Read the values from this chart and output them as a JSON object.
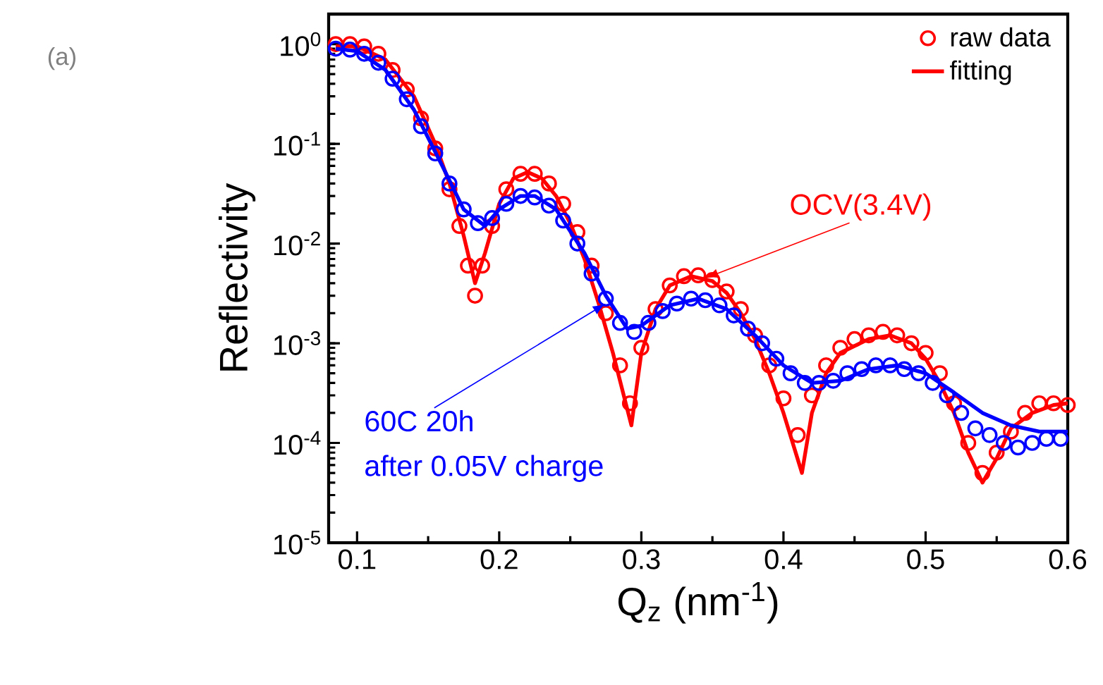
{
  "chart_data": {
    "type": "scatter",
    "xlabel": "Q$_{z}$ (nm$^{-1}$)",
    "ylabel": "Reflectivity",
    "log": "y",
    "legend": "top right",
    "xlim": [
      0.08,
      0.6
    ],
    "xticks": [
      0.1,
      0.2,
      0.3,
      0.4,
      0.5,
      0.6
    ],
    "ylim": [
      1e-05,
      2
    ],
    "yticks": [
      {
        "value": 1e-05,
        "label": "10$^{-5}$"
      },
      {
        "value": 0.0001,
        "label": "10$^{-4}$"
      },
      {
        "value": 0.001,
        "label": "10$^{-3}$"
      },
      {
        "value": 0.01,
        "label": "10$^{-2}$"
      },
      {
        "value": 0.1,
        "label": "10$^{-1}$"
      },
      {
        "value": 1,
        "label": "10$^{0}$"
      }
    ],
    "annotations": [
      "(a)",
      {
        "text": "OCV(3.4V)",
        "x": 0.345,
        "y": 0.0045
      },
      {
        "text": "60C 20h",
        "x": 0.275,
        "y": 0.0025
      },
      "after 0.05V charge"
    ],
    "series": [
      {
        "type": "scatter",
        "name": "raw data",
        "color": "#ff0000",
        "marker": "circle",
        "x": [
          0.085,
          0.095,
          0.105,
          0.115,
          0.125,
          0.135,
          0.145,
          0.155,
          0.165,
          0.172,
          0.178,
          0.183,
          0.188,
          0.195,
          0.205,
          0.215,
          0.225,
          0.235,
          0.245,
          0.255,
          0.265,
          0.275,
          0.285,
          0.292,
          0.3,
          0.31,
          0.32,
          0.33,
          0.34,
          0.35,
          0.36,
          0.37,
          0.38,
          0.39,
          0.4,
          0.41,
          0.42,
          0.43,
          0.44,
          0.45,
          0.46,
          0.47,
          0.48,
          0.49,
          0.5,
          0.51,
          0.52,
          0.53,
          0.54,
          0.55,
          0.56,
          0.57,
          0.58,
          0.59,
          0.6
        ],
        "values": [
          1.0,
          1.0,
          0.95,
          0.8,
          0.55,
          0.35,
          0.18,
          0.09,
          0.035,
          0.015,
          0.006,
          0.003,
          0.006,
          0.015,
          0.035,
          0.05,
          0.05,
          0.04,
          0.025,
          0.013,
          0.006,
          0.002,
          0.0006,
          0.00025,
          0.0009,
          0.0022,
          0.0038,
          0.0047,
          0.0048,
          0.0043,
          0.0033,
          0.0022,
          0.0012,
          0.0006,
          0.00028,
          0.00012,
          0.0003,
          0.0006,
          0.0009,
          0.0011,
          0.0012,
          0.0013,
          0.0012,
          0.001,
          0.0008,
          0.0005,
          0.00025,
          0.0001,
          5e-05,
          8e-05,
          0.00013,
          0.0002,
          0.00025,
          0.00025,
          0.00024
        ]
      },
      {
        "type": "line",
        "name": "fitting",
        "color": "#ff0000",
        "line_style": "solid",
        "marker": "none",
        "x": [
          0.085,
          0.1,
          0.12,
          0.14,
          0.155,
          0.165,
          0.175,
          0.183,
          0.19,
          0.2,
          0.21,
          0.22,
          0.23,
          0.24,
          0.25,
          0.26,
          0.27,
          0.28,
          0.293,
          0.3,
          0.31,
          0.32,
          0.335,
          0.35,
          0.36,
          0.37,
          0.38,
          0.39,
          0.4,
          0.413,
          0.42,
          0.43,
          0.44,
          0.46,
          0.475,
          0.49,
          0.5,
          0.51,
          0.52,
          0.53,
          0.54,
          0.55,
          0.56,
          0.575,
          0.59,
          0.6
        ],
        "values": [
          0.95,
          0.95,
          0.7,
          0.3,
          0.1,
          0.04,
          0.012,
          0.004,
          0.008,
          0.025,
          0.045,
          0.052,
          0.045,
          0.03,
          0.016,
          0.007,
          0.0025,
          0.0008,
          0.00015,
          0.0008,
          0.0022,
          0.0038,
          0.0047,
          0.0042,
          0.0032,
          0.002,
          0.0011,
          0.0005,
          0.0002,
          5e-05,
          0.0002,
          0.0005,
          0.0008,
          0.0011,
          0.0012,
          0.001,
          0.0007,
          0.0004,
          0.0002,
          8e-05,
          4e-05,
          7e-05,
          0.00014,
          0.0002,
          0.00024,
          0.00025
        ]
      },
      {
        "type": "scatter",
        "color": "#0000ff",
        "marker": "circle",
        "x": [
          0.085,
          0.095,
          0.105,
          0.115,
          0.125,
          0.135,
          0.145,
          0.155,
          0.165,
          0.175,
          0.185,
          0.195,
          0.205,
          0.215,
          0.225,
          0.235,
          0.245,
          0.255,
          0.265,
          0.275,
          0.285,
          0.295,
          0.305,
          0.315,
          0.325,
          0.335,
          0.345,
          0.355,
          0.365,
          0.375,
          0.385,
          0.395,
          0.405,
          0.415,
          0.425,
          0.435,
          0.445,
          0.455,
          0.465,
          0.475,
          0.485,
          0.495,
          0.505,
          0.515,
          0.525,
          0.535,
          0.545,
          0.555,
          0.565,
          0.575,
          0.585,
          0.595
        ],
        "values": [
          0.9,
          0.88,
          0.8,
          0.65,
          0.45,
          0.28,
          0.15,
          0.08,
          0.04,
          0.022,
          0.016,
          0.018,
          0.025,
          0.03,
          0.029,
          0.024,
          0.017,
          0.01,
          0.005,
          0.0028,
          0.0016,
          0.0013,
          0.0016,
          0.0021,
          0.0025,
          0.0028,
          0.0027,
          0.0024,
          0.0019,
          0.0014,
          0.001,
          0.0007,
          0.0005,
          0.0004,
          0.0004,
          0.00042,
          0.0005,
          0.00055,
          0.0006,
          0.0006,
          0.00055,
          0.0005,
          0.0004,
          0.0003,
          0.0002,
          0.00014,
          0.00012,
          0.0001,
          9e-05,
          0.0001,
          0.00011,
          0.00011
        ]
      },
      {
        "type": "line",
        "color": "#0000ff",
        "line_style": "solid",
        "marker": "none",
        "x": [
          0.085,
          0.1,
          0.12,
          0.14,
          0.16,
          0.175,
          0.19,
          0.2,
          0.215,
          0.225,
          0.24,
          0.26,
          0.275,
          0.29,
          0.3,
          0.32,
          0.34,
          0.36,
          0.38,
          0.4,
          0.42,
          0.44,
          0.46,
          0.48,
          0.5,
          0.52,
          0.54,
          0.56,
          0.58,
          0.6
        ],
        "values": [
          0.9,
          0.85,
          0.55,
          0.22,
          0.06,
          0.022,
          0.015,
          0.022,
          0.03,
          0.03,
          0.022,
          0.008,
          0.003,
          0.0014,
          0.0015,
          0.0024,
          0.0028,
          0.0022,
          0.0012,
          0.0006,
          0.0004,
          0.00042,
          0.00055,
          0.0006,
          0.0005,
          0.00032,
          0.0002,
          0.00015,
          0.00013,
          0.00013
        ]
      }
    ]
  }
}
